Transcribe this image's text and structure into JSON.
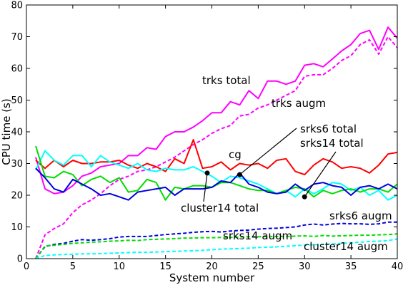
{
  "chart_data": {
    "type": "line",
    "xlabel": "System number",
    "ylabel": "CPU time (s)",
    "xlim": [
      0,
      40
    ],
    "ylim": [
      0,
      80
    ],
    "xticks": [
      0,
      5,
      10,
      15,
      20,
      25,
      30,
      35,
      40
    ],
    "yticks": [
      0,
      10,
      20,
      30,
      40,
      50,
      60,
      70,
      80
    ],
    "grid": false,
    "legend": "none",
    "x": [
      1,
      2,
      3,
      4,
      5,
      6,
      7,
      8,
      9,
      10,
      11,
      12,
      13,
      14,
      15,
      16,
      17,
      18,
      19,
      20,
      21,
      22,
      23,
      24,
      25,
      26,
      27,
      28,
      29,
      30,
      31,
      32,
      33,
      34,
      35,
      36,
      37,
      38,
      39,
      40
    ],
    "series": [
      {
        "name": "trks total",
        "color": "#ff00ff",
        "style": "solid",
        "values": [
          32.0,
          22.0,
          20.5,
          21.0,
          23.0,
          26.0,
          27.0,
          29.0,
          29.5,
          30.0,
          32.5,
          32.5,
          35.0,
          34.5,
          38.5,
          40.0,
          40.0,
          41.5,
          43.5,
          46.0,
          46.0,
          49.5,
          48.5,
          53.0,
          50.5,
          56.0,
          56.0,
          55.0,
          56.0,
          61.0,
          61.5,
          60.5,
          63.0,
          65.5,
          67.5,
          71.0,
          72.0,
          66.0,
          73.0,
          69.5
        ]
      },
      {
        "name": "trks augm",
        "color": "#ff00ff",
        "style": "dashed",
        "values": [
          0.0,
          7.5,
          9.5,
          11.0,
          14.5,
          17.0,
          18.5,
          20.5,
          23.0,
          25.0,
          26.0,
          27.5,
          28.0,
          29.0,
          30.5,
          32.0,
          34.0,
          36.0,
          37.5,
          39.5,
          41.0,
          42.0,
          45.0,
          45.5,
          47.5,
          48.5,
          50.0,
          51.5,
          53.0,
          57.5,
          58.0,
          58.0,
          60.0,
          62.5,
          64.0,
          67.5,
          69.0,
          64.5,
          70.0,
          66.5
        ]
      },
      {
        "name": "cg",
        "color": "#ff0000",
        "style": "solid",
        "values": [
          31.0,
          28.5,
          31.0,
          29.0,
          31.0,
          30.0,
          30.0,
          30.5,
          30.5,
          31.0,
          29.5,
          28.5,
          30.0,
          29.0,
          27.5,
          31.5,
          30.0,
          37.5,
          28.5,
          29.0,
          30.5,
          28.0,
          30.0,
          29.5,
          30.0,
          28.5,
          31.0,
          31.5,
          27.5,
          26.5,
          29.5,
          31.5,
          30.5,
          28.5,
          29.0,
          28.5,
          27.0,
          29.5,
          33.0,
          33.5
        ]
      },
      {
        "name": "cluster14 total",
        "color": "#00ffff",
        "style": "solid",
        "values": [
          28.0,
          34.0,
          31.0,
          29.5,
          32.5,
          32.5,
          29.0,
          32.5,
          30.5,
          29.5,
          28.5,
          30.0,
          28.0,
          27.5,
          28.5,
          28.0,
          28.0,
          29.0,
          27.5,
          26.0,
          24.0,
          26.0,
          25.5,
          24.5,
          23.5,
          22.0,
          20.5,
          21.5,
          19.5,
          22.0,
          20.5,
          22.0,
          24.0,
          23.5,
          21.5,
          22.5,
          20.0,
          21.5,
          18.5,
          20.0
        ]
      },
      {
        "name": "srks14 total",
        "color": "#00dd00",
        "style": "solid",
        "values": [
          35.5,
          26.0,
          25.5,
          27.5,
          26.5,
          23.0,
          25.0,
          26.0,
          24.0,
          25.5,
          21.0,
          21.5,
          25.0,
          24.0,
          18.5,
          22.5,
          22.0,
          23.0,
          23.0,
          22.5,
          24.0,
          24.0,
          23.0,
          22.0,
          21.5,
          21.5,
          20.5,
          21.5,
          22.5,
          22.0,
          19.5,
          21.5,
          20.5,
          21.5,
          22.0,
          21.0,
          22.0,
          22.0,
          21.0,
          23.5
        ]
      },
      {
        "name": "srks6 total",
        "color": "#0000dd",
        "style": "solid",
        "values": [
          28.5,
          25.5,
          22.0,
          21.0,
          25.0,
          23.5,
          22.0,
          20.0,
          20.5,
          19.5,
          18.5,
          21.0,
          21.5,
          22.0,
          22.5,
          20.0,
          22.0,
          22.0,
          22.0,
          22.5,
          24.5,
          24.0,
          27.0,
          23.5,
          22.5,
          21.0,
          20.5,
          21.0,
          23.5,
          21.5,
          23.5,
          24.0,
          23.0,
          22.5,
          20.0,
          22.5,
          23.0,
          22.0,
          23.5,
          22.0
        ]
      },
      {
        "name": "srks6 augm",
        "color": "#0000dd",
        "style": "dashed",
        "values": [
          0.0,
          3.8,
          4.5,
          4.8,
          5.5,
          6.0,
          5.8,
          6.0,
          6.3,
          6.8,
          7.0,
          7.0,
          7.0,
          7.3,
          7.6,
          7.8,
          8.0,
          8.3,
          8.5,
          8.6,
          8.4,
          8.7,
          8.9,
          9.0,
          9.3,
          9.5,
          9.6,
          9.8,
          10.0,
          10.6,
          10.9,
          10.6,
          10.9,
          11.1,
          11.0,
          11.0,
          10.8,
          11.0,
          11.5,
          11.5
        ]
      },
      {
        "name": "srks14 augm",
        "color": "#00dd00",
        "style": "dashed",
        "values": [
          0.0,
          4.0,
          4.2,
          4.5,
          4.8,
          5.0,
          5.2,
          5.3,
          5.5,
          5.6,
          5.8,
          5.7,
          6.0,
          6.1,
          6.2,
          6.3,
          6.5,
          6.5,
          6.6,
          6.6,
          6.7,
          6.7,
          6.8,
          6.9,
          6.9,
          7.0,
          7.0,
          7.0,
          7.1,
          7.2,
          7.0,
          7.3,
          7.1,
          7.2,
          7.3,
          7.4,
          7.4,
          7.5,
          7.6,
          7.8
        ]
      },
      {
        "name": "cluster14 augm",
        "color": "#00ffff",
        "style": "dashed",
        "values": [
          0.0,
          1.0,
          1.2,
          1.3,
          1.4,
          1.5,
          1.5,
          1.6,
          1.7,
          1.8,
          1.9,
          2.0,
          2.0,
          2.1,
          2.2,
          2.3,
          2.4,
          2.5,
          2.6,
          2.8,
          3.0,
          3.1,
          3.2,
          3.3,
          3.5,
          3.6,
          3.7,
          3.9,
          4.1,
          4.3,
          4.4,
          4.5,
          4.6,
          4.8,
          5.0,
          5.2,
          5.4,
          5.5,
          5.7,
          6.2
        ]
      }
    ],
    "annotations": [
      {
        "text": "trks total",
        "target_series": "trks total"
      },
      {
        "text": "trks augm",
        "target_series": "trks augm"
      },
      {
        "text": "cg",
        "target_series": "cg"
      },
      {
        "text": "srks6 total",
        "target_series": "srks6 total",
        "arrow_point": [
          23,
          26.5
        ]
      },
      {
        "text": "srks14 total",
        "target_series": "srks14 total",
        "arrow_point": [
          30,
          19.5
        ]
      },
      {
        "text": "cluster14 total",
        "target_series": "cluster14 total",
        "arrow_point": [
          19.5,
          27
        ]
      },
      {
        "text": "srks6 augm",
        "target_series": "srks6 augm"
      },
      {
        "text": "srks14 augm",
        "target_series": "srks14 augm"
      },
      {
        "text": "cluster14 augm",
        "target_series": "cluster14 augm"
      }
    ]
  }
}
